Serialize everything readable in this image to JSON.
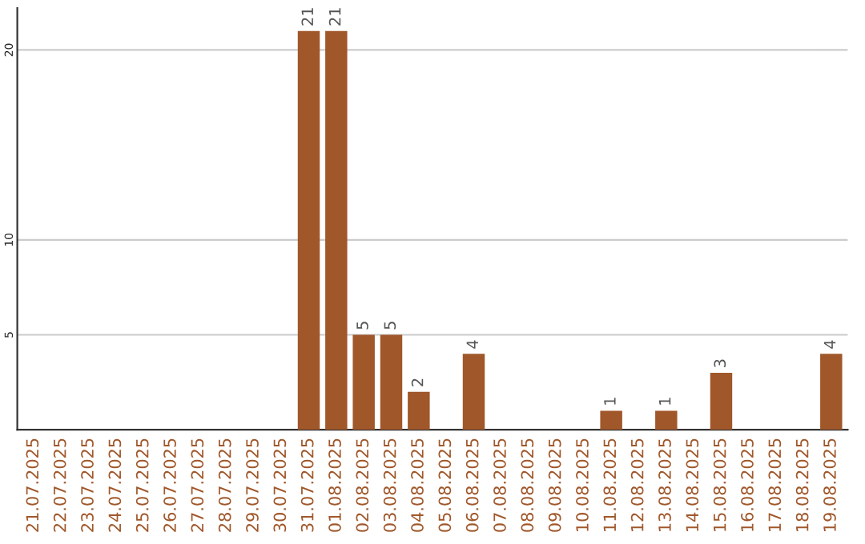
{
  "chart_data": {
    "type": "bar",
    "categories": [
      "21.07.2025",
      "22.07.2025",
      "23.07.2025",
      "24.07.2025",
      "25.07.2025",
      "26.07.2025",
      "27.07.2025",
      "28.07.2025",
      "29.07.2025",
      "30.07.2025",
      "31.07.2025",
      "01.08.2025",
      "02.08.2025",
      "03.08.2025",
      "04.08.2025",
      "05.08.2025",
      "06.08.2025",
      "07.08.2025",
      "08.08.2025",
      "09.08.2025",
      "10.08.2025",
      "11.08.2025",
      "12.08.2025",
      "13.08.2025",
      "14.08.2025",
      "15.08.2025",
      "16.08.2025",
      "17.08.2025",
      "18.08.2025",
      "19.08.2025"
    ],
    "values": [
      0,
      0,
      0,
      0,
      0,
      0,
      0,
      0,
      0,
      0,
      21,
      21,
      5,
      5,
      2,
      0,
      4,
      0,
      0,
      0,
      0,
      1,
      0,
      1,
      0,
      3,
      0,
      0,
      0,
      4
    ],
    "value_labels": [
      null,
      null,
      null,
      null,
      null,
      null,
      null,
      null,
      null,
      null,
      "21",
      "21",
      "5",
      "5",
      "2",
      null,
      "4",
      null,
      null,
      null,
      null,
      "1",
      null,
      "1",
      null,
      "3",
      null,
      null,
      null,
      "4"
    ],
    "color": "#a0572a",
    "ylim": [
      0,
      22.2
    ],
    "yticks": [
      5,
      10,
      20
    ],
    "grid": "y",
    "legend": false
  }
}
